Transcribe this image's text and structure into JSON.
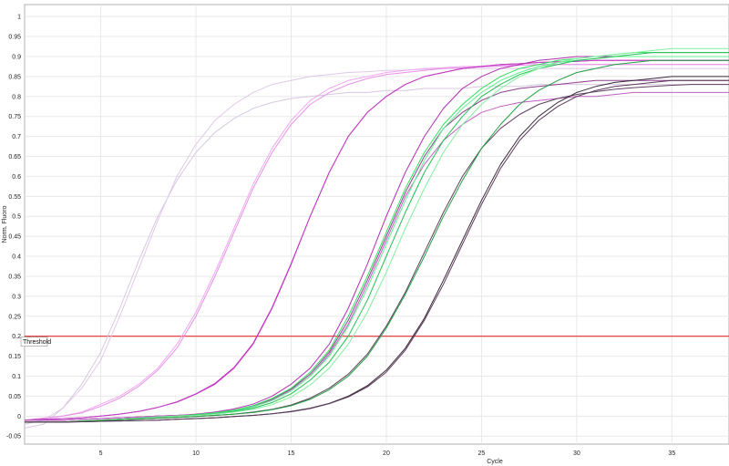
{
  "chart_data": {
    "type": "line",
    "xlabel": "Cycle",
    "ylabel": "Norm. Fluoro",
    "xlim": [
      1,
      38
    ],
    "ylim": [
      -0.07,
      1.03
    ],
    "grid": true,
    "x_ticks": [
      5,
      10,
      15,
      20,
      25,
      30,
      35
    ],
    "y_ticks": [
      -0.05,
      0,
      0.05,
      0.1,
      0.15,
      0.2,
      0.25,
      0.3,
      0.35,
      0.4,
      0.45,
      0.5,
      0.55,
      0.6,
      0.65,
      0.7,
      0.75,
      0.8,
      0.85,
      0.9,
      0.95,
      1
    ],
    "y_tick_labels": [
      "-0.05",
      "0",
      "0.05",
      "0.1",
      "0.15",
      "0.2",
      "0.25",
      "0.3",
      "0.35",
      "0.4",
      "0.45",
      "0.5",
      "0.55",
      "0.6",
      "0.65",
      "0.7",
      "0.75",
      "0.8",
      "0.85",
      "0.9",
      "0.95",
      "1"
    ],
    "threshold": {
      "label": "Threshold",
      "value": 0.2,
      "color": "#e03030"
    },
    "series": [
      {
        "color": "#d8c8e0",
        "values": [
          -0.03,
          -0.02,
          0.02,
          0.08,
          0.16,
          0.27,
          0.39,
          0.5,
          0.59,
          0.66,
          0.71,
          0.745,
          0.77,
          0.785,
          0.795,
          0.8,
          0.805,
          0.81,
          0.81,
          0.815,
          0.815,
          0.82,
          0.82,
          0.82,
          0.825,
          0.825,
          0.825,
          0.83,
          0.83,
          0.83,
          0.83,
          0.83,
          0.83,
          0.83,
          0.83,
          0.83,
          0.83,
          0.83
        ]
      },
      {
        "color": "#e0c8e8",
        "values": [
          -0.02,
          -0.01,
          0.02,
          0.07,
          0.14,
          0.25,
          0.37,
          0.49,
          0.6,
          0.68,
          0.74,
          0.78,
          0.81,
          0.83,
          0.84,
          0.85,
          0.855,
          0.86,
          0.862,
          0.865,
          0.866,
          0.868,
          0.87,
          0.87,
          0.87,
          0.87,
          0.87,
          0.87,
          0.87,
          0.87,
          0.87,
          0.87,
          0.87,
          0.87,
          0.87,
          0.87,
          0.87,
          0.87
        ]
      },
      {
        "color": "#f0a8f0",
        "values": [
          -0.01,
          -0.005,
          0.0,
          0.01,
          0.03,
          0.05,
          0.08,
          0.12,
          0.18,
          0.26,
          0.36,
          0.47,
          0.58,
          0.67,
          0.74,
          0.79,
          0.82,
          0.84,
          0.85,
          0.86,
          0.865,
          0.87,
          0.872,
          0.875,
          0.876,
          0.878,
          0.879,
          0.88,
          0.88,
          0.88,
          0.88,
          0.88,
          0.88,
          0.88,
          0.88,
          0.88,
          0.88,
          0.88
        ]
      },
      {
        "color": "#e890e8",
        "values": [
          -0.01,
          -0.005,
          0.0,
          0.008,
          0.025,
          0.045,
          0.075,
          0.115,
          0.17,
          0.25,
          0.35,
          0.46,
          0.57,
          0.66,
          0.73,
          0.78,
          0.81,
          0.83,
          0.845,
          0.855,
          0.86,
          0.865,
          0.87,
          0.872,
          0.874,
          0.876,
          0.878,
          0.88,
          0.88,
          0.88,
          0.88,
          0.88,
          0.88,
          0.88,
          0.88,
          0.88,
          0.88,
          0.88
        ]
      },
      {
        "color": "#d020d0",
        "values": [
          -0.01,
          -0.008,
          -0.006,
          -0.004,
          0.0,
          0.005,
          0.012,
          0.022,
          0.035,
          0.055,
          0.08,
          0.12,
          0.18,
          0.27,
          0.38,
          0.5,
          0.61,
          0.7,
          0.76,
          0.8,
          0.83,
          0.85,
          0.86,
          0.87,
          0.875,
          0.88,
          0.882,
          0.885,
          0.887,
          0.888,
          0.89,
          0.89,
          0.89,
          0.89,
          0.89,
          0.89,
          0.89,
          0.89
        ]
      },
      {
        "color": "#c040c0",
        "values": [
          -0.01,
          -0.008,
          -0.006,
          -0.004,
          0.0,
          0.005,
          0.012,
          0.022,
          0.036,
          0.056,
          0.082,
          0.122,
          0.182,
          0.272,
          0.382,
          0.5,
          0.61,
          0.7,
          0.76,
          0.8,
          0.83,
          0.85,
          0.86,
          0.87,
          0.875,
          0.88,
          0.882,
          0.885,
          0.887,
          0.888,
          0.89,
          0.89,
          0.89,
          0.89,
          0.89,
          0.89,
          0.89,
          0.89
        ]
      },
      {
        "color": "#b030b0",
        "values": [
          -0.01,
          -0.01,
          -0.01,
          -0.008,
          -0.006,
          -0.004,
          -0.002,
          0.0,
          0.002,
          0.005,
          0.01,
          0.018,
          0.03,
          0.05,
          0.08,
          0.12,
          0.18,
          0.27,
          0.38,
          0.5,
          0.61,
          0.7,
          0.77,
          0.82,
          0.85,
          0.87,
          0.88,
          0.89,
          0.895,
          0.9,
          0.9,
          0.9,
          0.9,
          0.9,
          0.9,
          0.9,
          0.9,
          0.9
        ]
      },
      {
        "color": "#904090",
        "values": [
          -0.01,
          -0.01,
          -0.01,
          -0.008,
          -0.006,
          -0.004,
          -0.002,
          0.0,
          0.002,
          0.004,
          0.008,
          0.015,
          0.025,
          0.042,
          0.068,
          0.105,
          0.16,
          0.24,
          0.34,
          0.45,
          0.56,
          0.65,
          0.72,
          0.76,
          0.79,
          0.81,
          0.82,
          0.825,
          0.83,
          0.835,
          0.84,
          0.84,
          0.84,
          0.84,
          0.84,
          0.84,
          0.84,
          0.84
        ]
      },
      {
        "color": "#c060c0",
        "values": [
          -0.01,
          -0.01,
          -0.01,
          -0.008,
          -0.006,
          -0.004,
          -0.002,
          0.0,
          0.002,
          0.004,
          0.008,
          0.014,
          0.024,
          0.04,
          0.066,
          0.1,
          0.155,
          0.23,
          0.33,
          0.44,
          0.55,
          0.63,
          0.69,
          0.73,
          0.76,
          0.775,
          0.785,
          0.79,
          0.795,
          0.8,
          0.8,
          0.805,
          0.81,
          0.81,
          0.81,
          0.81,
          0.81,
          0.81
        ]
      },
      {
        "color": "#30e060",
        "values": [
          -0.015,
          -0.015,
          -0.015,
          -0.012,
          -0.01,
          -0.008,
          -0.005,
          -0.002,
          0.0,
          0.004,
          0.008,
          0.015,
          0.026,
          0.044,
          0.07,
          0.11,
          0.165,
          0.25,
          0.35,
          0.46,
          0.57,
          0.66,
          0.73,
          0.78,
          0.82,
          0.85,
          0.87,
          0.88,
          0.89,
          0.895,
          0.9,
          0.905,
          0.91,
          0.91,
          0.91,
          0.91,
          0.91,
          0.91
        ]
      },
      {
        "color": "#60f090",
        "values": [
          -0.015,
          -0.015,
          -0.015,
          -0.012,
          -0.01,
          -0.008,
          -0.005,
          -0.002,
          0.0,
          0.003,
          0.007,
          0.013,
          0.023,
          0.039,
          0.063,
          0.1,
          0.15,
          0.225,
          0.32,
          0.43,
          0.54,
          0.64,
          0.72,
          0.77,
          0.81,
          0.84,
          0.86,
          0.875,
          0.885,
          0.89,
          0.895,
          0.9,
          0.9,
          0.9,
          0.9,
          0.9,
          0.9,
          0.9
        ]
      },
      {
        "color": "#20c050",
        "values": [
          -0.015,
          -0.015,
          -0.015,
          -0.012,
          -0.01,
          -0.008,
          -0.005,
          -0.002,
          0.0,
          0.003,
          0.006,
          0.012,
          0.02,
          0.034,
          0.056,
          0.09,
          0.135,
          0.2,
          0.29,
          0.4,
          0.51,
          0.61,
          0.69,
          0.75,
          0.8,
          0.83,
          0.855,
          0.87,
          0.88,
          0.89,
          0.895,
          0.9,
          0.905,
          0.91,
          0.91,
          0.91,
          0.91,
          0.91
        ]
      },
      {
        "color": "#80f0a0",
        "values": [
          -0.015,
          -0.015,
          -0.015,
          -0.012,
          -0.01,
          -0.008,
          -0.005,
          -0.002,
          0.0,
          0.002,
          0.005,
          0.01,
          0.017,
          0.029,
          0.048,
          0.078,
          0.12,
          0.18,
          0.26,
          0.36,
          0.47,
          0.57,
          0.66,
          0.73,
          0.78,
          0.82,
          0.85,
          0.87,
          0.885,
          0.895,
          0.9,
          0.905,
          0.91,
          0.915,
          0.92,
          0.92,
          0.92,
          0.92
        ]
      },
      {
        "color": "#604060",
        "values": [
          -0.015,
          -0.015,
          -0.015,
          -0.013,
          -0.011,
          -0.009,
          -0.007,
          -0.005,
          -0.003,
          -0.001,
          0.002,
          0.005,
          0.01,
          0.017,
          0.028,
          0.045,
          0.07,
          0.105,
          0.155,
          0.225,
          0.31,
          0.41,
          0.51,
          0.6,
          0.67,
          0.72,
          0.755,
          0.78,
          0.795,
          0.805,
          0.812,
          0.818,
          0.822,
          0.825,
          0.828,
          0.83,
          0.83,
          0.83
        ]
      },
      {
        "color": "#20a040",
        "values": [
          -0.015,
          -0.015,
          -0.015,
          -0.013,
          -0.011,
          -0.009,
          -0.007,
          -0.005,
          -0.003,
          -0.001,
          0.002,
          0.005,
          0.009,
          0.016,
          0.026,
          0.042,
          0.066,
          0.1,
          0.15,
          0.22,
          0.305,
          0.4,
          0.5,
          0.59,
          0.67,
          0.73,
          0.78,
          0.815,
          0.84,
          0.86,
          0.87,
          0.88,
          0.885,
          0.89,
          0.89,
          0.89,
          0.89,
          0.89
        ]
      },
      {
        "color": "#3a2a3a",
        "values": [
          -0.015,
          -0.015,
          -0.015,
          -0.014,
          -0.013,
          -0.012,
          -0.011,
          -0.01,
          -0.008,
          -0.006,
          -0.004,
          -0.001,
          0.002,
          0.006,
          0.012,
          0.02,
          0.032,
          0.05,
          0.076,
          0.115,
          0.17,
          0.245,
          0.34,
          0.44,
          0.54,
          0.63,
          0.7,
          0.75,
          0.785,
          0.81,
          0.825,
          0.835,
          0.84,
          0.845,
          0.85,
          0.85,
          0.85,
          0.85
        ]
      },
      {
        "color": "#5a3a5a",
        "values": [
          -0.015,
          -0.015,
          -0.015,
          -0.014,
          -0.013,
          -0.012,
          -0.011,
          -0.01,
          -0.008,
          -0.006,
          -0.004,
          -0.001,
          0.002,
          0.006,
          0.011,
          0.019,
          0.031,
          0.048,
          0.073,
          0.11,
          0.165,
          0.24,
          0.33,
          0.43,
          0.53,
          0.62,
          0.69,
          0.74,
          0.775,
          0.8,
          0.815,
          0.825,
          0.83,
          0.835,
          0.84,
          0.84,
          0.84,
          0.84
        ]
      }
    ]
  }
}
